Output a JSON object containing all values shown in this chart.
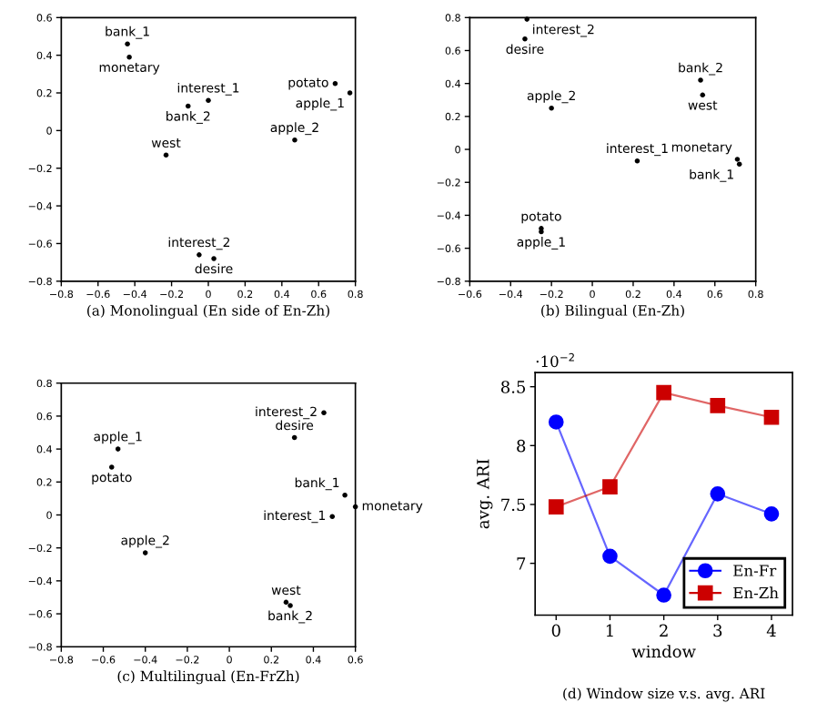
{
  "chart_data": [
    {
      "type": "scatter",
      "title": "(a) Monolingual (En side of En-Zh)",
      "marker": "circle",
      "grid": false,
      "xlim": [
        -0.8,
        0.8
      ],
      "ylim": [
        -0.8,
        0.6
      ],
      "xticks": [
        -0.8,
        -0.6,
        -0.4,
        -0.2,
        0.0,
        0.2,
        0.4,
        0.6,
        0.8
      ],
      "yticks": [
        -0.8,
        -0.6,
        -0.4,
        -0.2,
        0.0,
        0.2,
        0.4,
        0.6
      ],
      "series": [
        {
          "name": "bank_1",
          "color": "#000000",
          "x": [
            -0.44
          ],
          "values": [
            0.46
          ]
        },
        {
          "name": "monetary",
          "color": "#000000",
          "x": [
            -0.43
          ],
          "values": [
            0.39
          ]
        },
        {
          "name": "interest_1",
          "color": "#000000",
          "x": [
            0.0
          ],
          "values": [
            0.16
          ]
        },
        {
          "name": "bank_2",
          "color": "#000000",
          "x": [
            -0.11
          ],
          "values": [
            0.13
          ]
        },
        {
          "name": "potato",
          "color": "#000000",
          "x": [
            0.69
          ],
          "values": [
            0.25
          ]
        },
        {
          "name": "apple_1",
          "color": "#000000",
          "x": [
            0.77
          ],
          "values": [
            0.2
          ]
        },
        {
          "name": "apple_2",
          "color": "#000000",
          "x": [
            0.47
          ],
          "values": [
            -0.05
          ]
        },
        {
          "name": "west",
          "color": "#000000",
          "x": [
            -0.23
          ],
          "values": [
            -0.13
          ]
        },
        {
          "name": "interest_2",
          "color": "#000000",
          "x": [
            -0.05
          ],
          "values": [
            -0.66
          ]
        },
        {
          "name": "desire",
          "color": "#000000",
          "x": [
            0.03
          ],
          "values": [
            -0.68
          ]
        }
      ]
    },
    {
      "type": "scatter",
      "title": "(b) Bilingual (En-Zh)",
      "marker": "circle",
      "grid": false,
      "xlim": [
        -0.6,
        0.8
      ],
      "ylim": [
        -0.8,
        0.8
      ],
      "xticks": [
        -0.6,
        -0.4,
        -0.2,
        0.0,
        0.2,
        0.4,
        0.6,
        0.8
      ],
      "yticks": [
        -0.8,
        -0.6,
        -0.4,
        -0.2,
        0.0,
        0.2,
        0.4,
        0.6,
        0.8
      ],
      "series": [
        {
          "name": "interest_2",
          "color": "#000000",
          "x": [
            -0.32
          ],
          "values": [
            0.79
          ]
        },
        {
          "name": "desire",
          "color": "#000000",
          "x": [
            -0.33
          ],
          "values": [
            0.67
          ]
        },
        {
          "name": "bank_2",
          "color": "#000000",
          "x": [
            0.53
          ],
          "values": [
            0.42
          ]
        },
        {
          "name": "west",
          "color": "#000000",
          "x": [
            0.54
          ],
          "values": [
            0.33
          ]
        },
        {
          "name": "apple_2",
          "color": "#000000",
          "x": [
            -0.2
          ],
          "values": [
            0.25
          ]
        },
        {
          "name": "interest_1",
          "color": "#000000",
          "x": [
            0.22
          ],
          "values": [
            -0.07
          ]
        },
        {
          "name": "monetary",
          "color": "#000000",
          "x": [
            0.71
          ],
          "values": [
            -0.06
          ]
        },
        {
          "name": "bank_1",
          "color": "#000000",
          "x": [
            0.72
          ],
          "values": [
            -0.09
          ]
        },
        {
          "name": "potato",
          "color": "#000000",
          "x": [
            -0.25
          ],
          "values": [
            -0.48
          ]
        },
        {
          "name": "apple_1",
          "color": "#000000",
          "x": [
            -0.25
          ],
          "values": [
            -0.5
          ]
        }
      ]
    },
    {
      "type": "scatter",
      "title": "(c) Multilingual (En-FrZh)",
      "marker": "circle",
      "grid": false,
      "xlim": [
        -0.8,
        0.6
      ],
      "ylim": [
        -0.8,
        0.8
      ],
      "xticks": [
        -0.8,
        -0.6,
        -0.4,
        -0.2,
        0.0,
        0.2,
        0.4,
        0.6
      ],
      "yticks": [
        -0.8,
        -0.6,
        -0.4,
        -0.2,
        0.0,
        0.2,
        0.4,
        0.6,
        0.8
      ],
      "series": [
        {
          "name": "interest_2",
          "color": "#000000",
          "x": [
            0.45
          ],
          "values": [
            0.62
          ]
        },
        {
          "name": "desire",
          "color": "#000000",
          "x": [
            0.31
          ],
          "values": [
            0.47
          ]
        },
        {
          "name": "apple_1",
          "color": "#000000",
          "x": [
            -0.53
          ],
          "values": [
            0.4
          ]
        },
        {
          "name": "potato",
          "color": "#000000",
          "x": [
            -0.56
          ],
          "values": [
            0.29
          ]
        },
        {
          "name": "bank_1",
          "color": "#000000",
          "x": [
            0.55
          ],
          "values": [
            0.12
          ]
        },
        {
          "name": "monetary",
          "color": "#000000",
          "x": [
            0.6
          ],
          "values": [
            0.05
          ]
        },
        {
          "name": "interest_1",
          "color": "#000000",
          "x": [
            0.49
          ],
          "values": [
            -0.01
          ]
        },
        {
          "name": "apple_2",
          "color": "#000000",
          "x": [
            -0.4
          ],
          "values": [
            -0.23
          ]
        },
        {
          "name": "west",
          "color": "#000000",
          "x": [
            0.27
          ],
          "values": [
            -0.53
          ]
        },
        {
          "name": "bank_2",
          "color": "#000000",
          "x": [
            0.29
          ],
          "values": [
            -0.55
          ]
        }
      ]
    },
    {
      "type": "line",
      "title": "(d) Window size v.s. avg. ARI",
      "xlabel": "window",
      "ylabel": "avg. ARI",
      "annotations": [
        "·10$^{−2}$"
      ],
      "marker": "circle",
      "legend": "bottom right",
      "grid": false,
      "x": [
        0,
        1,
        2,
        3,
        4
      ],
      "xlim": [
        -0.39,
        4.39
      ],
      "ylim": [
        6.56,
        8.62
      ],
      "xticks": [
        0,
        1,
        2,
        3,
        4
      ],
      "yticks": [
        7,
        7.5,
        8,
        8.5
      ],
      "series": [
        {
          "name": "En-Fr",
          "color": "#0000ff",
          "marker": "circle",
          "values": [
            8.2,
            7.06,
            6.73,
            7.59,
            7.42
          ]
        },
        {
          "name": "En-Zh",
          "color": "#cc0000",
          "marker": "square",
          "values": [
            7.48,
            7.65,
            8.45,
            8.34,
            8.24
          ]
        }
      ]
    }
  ]
}
